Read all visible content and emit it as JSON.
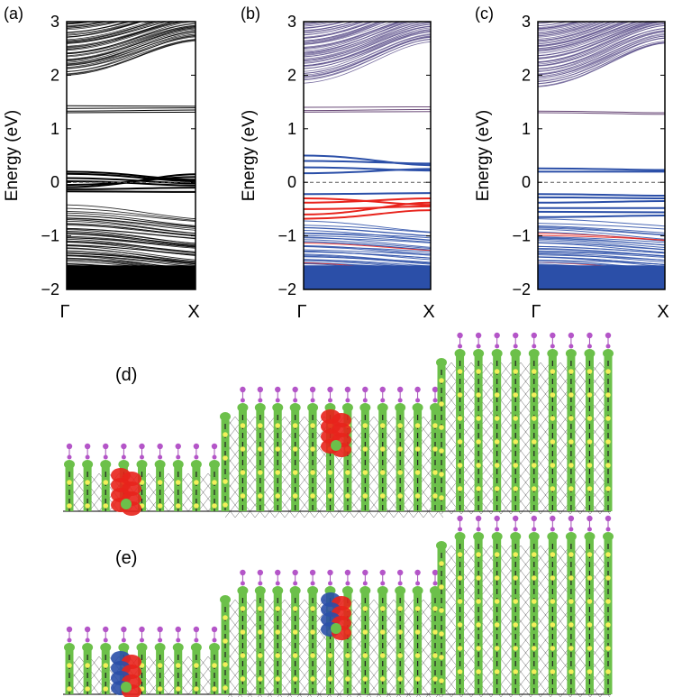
{
  "chart_data": [
    {
      "type": "line",
      "panel_label": "(a)",
      "ylabel": "Energy (eV)",
      "ylim": [
        -2,
        3
      ],
      "yticks": [
        "−2",
        "−1",
        "0",
        "1",
        "2",
        "3"
      ],
      "xticks": [
        "Γ",
        "X"
      ],
      "fermi_level": 0,
      "band_color": "#000000",
      "gap_bands": [
        {
          "gamma": 0.2,
          "x": 0.05,
          "color": "#000000"
        },
        {
          "gamma": 0.16,
          "x": 0.02,
          "color": "#000000"
        },
        {
          "gamma": 0.08,
          "x": -0.02,
          "color": "#000000"
        },
        {
          "gamma": 0.02,
          "x": -0.06,
          "color": "#000000"
        },
        {
          "gamma": -0.05,
          "x": 0.1,
          "color": "#000000"
        },
        {
          "gamma": -0.09,
          "x": 0.15,
          "color": "#000000"
        },
        {
          "gamma": -0.13,
          "x": -0.1,
          "color": "#000000"
        },
        {
          "gamma": -0.17,
          "x": -0.18,
          "color": "#000000"
        },
        {
          "gamma": 1.43,
          "x": 1.42,
          "color": "#000000"
        },
        {
          "gamma": 1.38,
          "x": 1.39,
          "color": "#000000"
        },
        {
          "gamma": 1.33,
          "x": 1.35,
          "color": "#000000"
        },
        {
          "gamma": 1.3,
          "x": 1.31,
          "color": "#000000"
        }
      ],
      "conduction_edge": {
        "gamma": 1.95,
        "x": 2.6,
        "color": "#000000"
      },
      "valence_edge": {
        "gamma": -0.42,
        "x": -0.62,
        "color": "#000000"
      }
    },
    {
      "type": "line",
      "panel_label": "(b)",
      "ylim": [
        -2,
        3
      ],
      "yticks": [
        "−2",
        "−1",
        "0",
        "1",
        "2",
        "3"
      ],
      "xticks": [
        "Γ",
        "X"
      ],
      "fermi_level": 0,
      "band_color": "#2b4fa8",
      "gap_bands": [
        {
          "gamma": 0.5,
          "x": 0.32,
          "color": "#2b4fa8"
        },
        {
          "gamma": 0.4,
          "x": 0.35,
          "color": "#2b4fa8"
        },
        {
          "gamma": 0.28,
          "x": 0.22,
          "color": "#2b4fa8"
        },
        {
          "gamma": 0.17,
          "x": 0.25,
          "color": "#2b4fa8"
        },
        {
          "gamma": -0.22,
          "x": -0.2,
          "color": "#2b4fa8"
        },
        {
          "gamma": -0.3,
          "x": -0.42,
          "color": "#e8231c"
        },
        {
          "gamma": -0.38,
          "x": -0.3,
          "color": "#e8231c"
        },
        {
          "gamma": -0.5,
          "x": -0.45,
          "color": "#e8231c"
        },
        {
          "gamma": -0.6,
          "x": -0.38,
          "color": "#e8231c"
        },
        {
          "gamma": -0.68,
          "x": -0.52,
          "color": "#e8231c"
        },
        {
          "gamma": 1.4,
          "x": 1.41,
          "color": "#6a4a78"
        },
        {
          "gamma": 1.34,
          "x": 1.36,
          "color": "#6a4a78"
        },
        {
          "gamma": 1.31,
          "x": 1.32,
          "color": "#6a4a78"
        }
      ],
      "conduction_edge": {
        "gamma": 1.85,
        "x": 2.6,
        "color": "#5a4d8a"
      },
      "valence_edge": {
        "gamma": -0.72,
        "x": -0.85,
        "color": "#2b4fa8"
      }
    },
    {
      "type": "line",
      "panel_label": "(c)",
      "ylim": [
        -2,
        3
      ],
      "yticks": [
        "−2",
        "−1",
        "0",
        "1",
        "2",
        "3"
      ],
      "xticks": [
        "Γ",
        "X"
      ],
      "fermi_level": 0,
      "band_color": "#2b4fa8",
      "gap_bands": [
        {
          "gamma": 0.26,
          "x": 0.23,
          "color": "#2b4fa8"
        },
        {
          "gamma": 0.2,
          "x": 0.2,
          "color": "#2b4fa8"
        },
        {
          "gamma": -0.22,
          "x": -0.25,
          "color": "#2b4fa8"
        },
        {
          "gamma": -0.28,
          "x": -0.3,
          "color": "#2b4fa8"
        },
        {
          "gamma": -0.38,
          "x": -0.35,
          "color": "#2b4fa8"
        },
        {
          "gamma": -0.48,
          "x": -0.48,
          "color": "#2b4fa8"
        },
        {
          "gamma": -0.55,
          "x": -0.56,
          "color": "#2b4fa8"
        },
        {
          "gamma": -0.65,
          "x": -0.62,
          "color": "#2b4fa8"
        },
        {
          "gamma": 1.33,
          "x": 1.3,
          "color": "#6a4a78"
        },
        {
          "gamma": 1.3,
          "x": 1.27,
          "color": "#6a4a78"
        }
      ],
      "conduction_edge": {
        "gamma": 1.75,
        "x": 2.55,
        "color": "#5a4d8a"
      },
      "valence_edge": {
        "gamma": -0.68,
        "x": -0.8,
        "color": "#2b4fa8"
      }
    }
  ],
  "structures": [
    {
      "label": "(d)",
      "lobe_colors": [
        "#e8231c",
        "#e8231c"
      ]
    },
    {
      "label": "(e)",
      "lobe_colors": [
        "#e8231c",
        "#2b4fa8"
      ]
    }
  ],
  "atom_colors": {
    "rod": "#6cc04a",
    "top": "#b455c8",
    "node": "#f3ef5a",
    "bond": "#222222"
  }
}
